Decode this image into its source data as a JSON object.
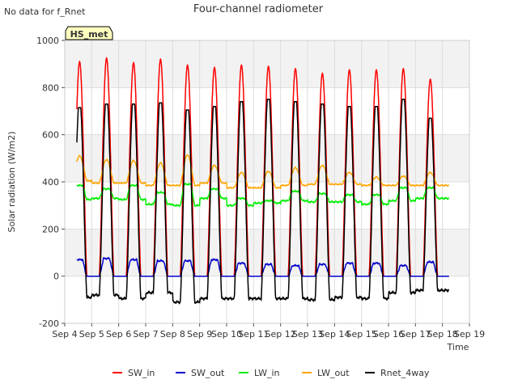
{
  "page": {
    "note": "No data for f_Rnet",
    "badge": "HS_met"
  },
  "chart_data": {
    "type": "line",
    "title": "Four-channel radiometer",
    "xlabel": "Time",
    "ylabel": "Solar radiation (W/m2)",
    "ylim": [
      -200,
      1000
    ],
    "yticks": [
      -200,
      0,
      200,
      400,
      600,
      800,
      1000
    ],
    "xlim": [
      4,
      19
    ],
    "xticks": [
      4,
      5,
      6,
      7,
      8,
      9,
      10,
      11,
      12,
      13,
      14,
      15,
      16,
      17,
      18,
      19
    ],
    "xtick_labels": [
      "Sep 4",
      "Sep 5",
      "Sep 6",
      "Sep 7",
      "Sep 8",
      "Sep 9",
      "Sep 10",
      "Sep 11",
      "Sep 12",
      "Sep 13",
      "Sep 14",
      "Sep 15",
      "Sep 16",
      "Sep 17",
      "Sep 18",
      "Sep 19"
    ],
    "grid": true,
    "legend_position": "bottom",
    "days": [
      4.5,
      5.5,
      6.5,
      7.5,
      8.5,
      9.5,
      10.5,
      11.5,
      12.5,
      13.5,
      14.5,
      15.5,
      16.5,
      17.5
    ],
    "series": [
      {
        "name": "SW_in",
        "color": "#ff0000",
        "daily_peak": [
          910,
          925,
          905,
          920,
          895,
          885,
          895,
          890,
          880,
          860,
          875,
          875,
          880,
          835
        ]
      },
      {
        "name": "SW_out",
        "color": "#0000cc",
        "daily_peak": [
          70,
          75,
          70,
          65,
          65,
          70,
          55,
          50,
          45,
          50,
          55,
          55,
          45,
          60
        ],
        "night_value": 0
      },
      {
        "name": "LW_in",
        "color": "#00ee00",
        "daily_peak": [
          385,
          370,
          385,
          355,
          390,
          370,
          330,
          320,
          360,
          350,
          345,
          345,
          375,
          375
        ],
        "daily_base": [
          325,
          330,
          325,
          305,
          300,
          330,
          300,
          310,
          320,
          315,
          315,
          305,
          320,
          330
        ]
      },
      {
        "name": "LW_out",
        "color": "#ffa500",
        "daily_peak": [
          510,
          495,
          490,
          480,
          515,
          470,
          440,
          445,
          460,
          470,
          440,
          420,
          425,
          440
        ],
        "daily_base": [
          405,
          395,
          395,
          385,
          385,
          395,
          375,
          375,
          385,
          390,
          390,
          385,
          385,
          385
        ]
      },
      {
        "name": "Rnet_4way",
        "color": "#000000",
        "daily_peak": [
          715,
          730,
          730,
          735,
          705,
          720,
          740,
          750,
          740,
          730,
          720,
          720,
          750,
          670
        ],
        "night_value": [
          -90,
          -80,
          -95,
          -70,
          -110,
          -95,
          -95,
          -95,
          -95,
          -100,
          -90,
          -95,
          -70,
          -60
        ]
      }
    ]
  }
}
